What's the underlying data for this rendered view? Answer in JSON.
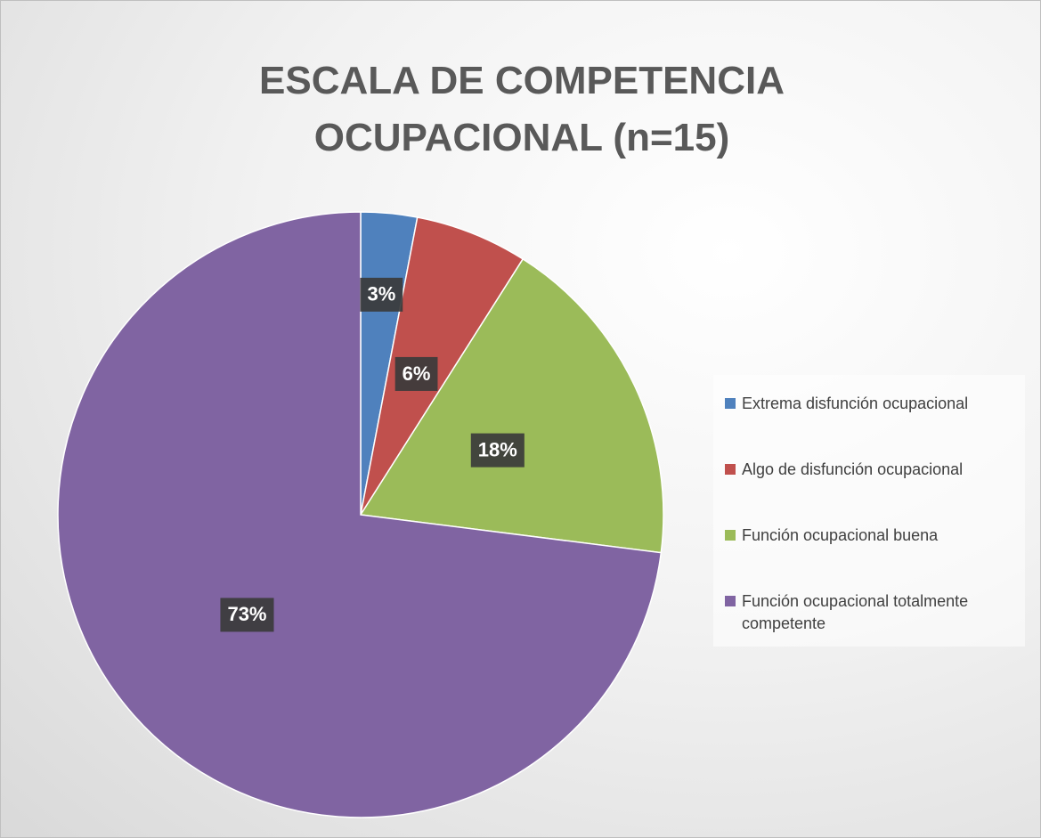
{
  "chart_data": {
    "type": "pie",
    "title": "ESCALA DE COMPETENCIA OCUPACIONAL (n=15)",
    "categories": [
      "Extrema disfunción ocupacional",
      "Algo de disfunción ocupacional",
      "Función ocupacional buena",
      "Función ocupacional totalmente competente"
    ],
    "values": [
      3,
      6,
      18,
      73
    ],
    "value_labels": [
      "3%",
      "6%",
      "18%",
      "73%"
    ],
    "colors": [
      "#4f81bd",
      "#c0504d",
      "#9bbb59",
      "#8064a2"
    ],
    "legend": "right"
  }
}
